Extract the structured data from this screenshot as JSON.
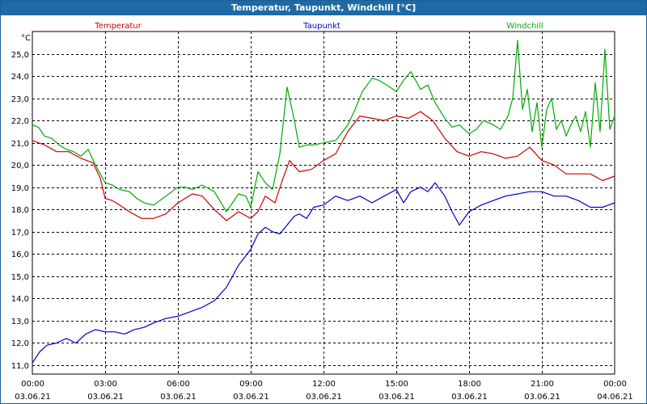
{
  "window": {
    "title": "Temperatur, Taupunkt, Windchill [°C]"
  },
  "colors": {
    "titlebar": "#1d6aa5",
    "temperatur": "#cc0000",
    "taupunkt": "#0000cc",
    "windchill": "#00aa00"
  },
  "chart_data": {
    "type": "line",
    "title": "Temperatur, Taupunkt, Windchill [°C]",
    "ylabel": "°C",
    "xlabel": "",
    "ylim": [
      10.6,
      26.0
    ],
    "xlim": [
      0,
      24
    ],
    "grid": true,
    "y_ticks": [
      "11,0",
      "12,0",
      "13,0",
      "14,0",
      "15,0",
      "16,0",
      "17,0",
      "18,0",
      "19,0",
      "20,0",
      "21,0",
      "22,0",
      "23,0",
      "24,0",
      "25,0"
    ],
    "x_ticks": [
      {
        "time": "00:00",
        "date": "03.06.21"
      },
      {
        "time": "03:00",
        "date": "03.06.21"
      },
      {
        "time": "06:00",
        "date": "03.06.21"
      },
      {
        "time": "09:00",
        "date": "03.06.21"
      },
      {
        "time": "12:00",
        "date": "03.06.21"
      },
      {
        "time": "15:00",
        "date": "03.06.21"
      },
      {
        "time": "18:00",
        "date": "03.06.21"
      },
      {
        "time": "21:00",
        "date": "03.06.21"
      },
      {
        "time": "00:00",
        "date": "04.06.21"
      }
    ],
    "series": [
      {
        "name": "Temperatur",
        "color": "#cc0000",
        "x": [
          0,
          0.25,
          0.5,
          1,
          1.5,
          2,
          2.5,
          2.8,
          3,
          3.3,
          3.6,
          4,
          4.5,
          5,
          5.5,
          6,
          6.3,
          6.6,
          7,
          7.5,
          8,
          8.5,
          9,
          9.3,
          9.6,
          10,
          10.3,
          10.6,
          11,
          11.5,
          12,
          12.5,
          13,
          13.5,
          14,
          14.5,
          15,
          15.5,
          16,
          16.5,
          17,
          17.5,
          18,
          18.5,
          19,
          19.5,
          20,
          20.5,
          21,
          21.5,
          22,
          22.5,
          23,
          23.5,
          24
        ],
        "values": [
          21.1,
          21.0,
          20.9,
          20.6,
          20.6,
          20.3,
          20.1,
          19.4,
          18.5,
          18.4,
          18.2,
          17.9,
          17.6,
          17.6,
          17.8,
          18.3,
          18.5,
          18.7,
          18.6,
          18.0,
          17.5,
          17.9,
          17.6,
          17.9,
          18.6,
          18.3,
          19.3,
          20.2,
          19.7,
          19.8,
          20.2,
          20.5,
          21.5,
          22.2,
          22.1,
          22.0,
          22.2,
          22.1,
          22.4,
          22.0,
          21.2,
          20.6,
          20.4,
          20.6,
          20.5,
          20.3,
          20.4,
          20.8,
          20.2,
          20.0,
          19.6,
          19.6,
          19.6,
          19.3,
          19.5
        ]
      },
      {
        "name": "Taupunkt",
        "color": "#0000cc",
        "x": [
          0,
          0.3,
          0.6,
          1,
          1.4,
          1.8,
          2.2,
          2.6,
          3,
          3.4,
          3.8,
          4.2,
          4.6,
          5,
          5.5,
          6,
          6.5,
          7,
          7.5,
          8,
          8.5,
          9,
          9.3,
          9.6,
          9.9,
          10.2,
          10.5,
          10.8,
          11,
          11.3,
          11.6,
          12,
          12.5,
          13,
          13.5,
          14,
          14.5,
          15,
          15.3,
          15.6,
          16,
          16.3,
          16.6,
          17,
          17.3,
          17.6,
          18,
          18.5,
          19,
          19.5,
          20,
          20.5,
          21,
          21.5,
          22,
          22.5,
          23,
          23.5,
          24
        ],
        "values": [
          11.1,
          11.6,
          11.9,
          12.0,
          12.2,
          12.0,
          12.4,
          12.6,
          12.5,
          12.5,
          12.4,
          12.6,
          12.7,
          12.9,
          13.1,
          13.2,
          13.4,
          13.6,
          13.9,
          14.5,
          15.5,
          16.2,
          16.9,
          17.2,
          17.0,
          16.9,
          17.3,
          17.7,
          17.8,
          17.6,
          18.1,
          18.2,
          18.6,
          18.4,
          18.6,
          18.3,
          18.6,
          18.9,
          18.3,
          18.8,
          19.0,
          18.8,
          19.2,
          18.6,
          17.9,
          17.3,
          17.9,
          18.2,
          18.4,
          18.6,
          18.7,
          18.8,
          18.8,
          18.6,
          18.6,
          18.4,
          18.1,
          18.1,
          18.3
        ]
      },
      {
        "name": "Windchill",
        "color": "#00aa00",
        "x": [
          0,
          0.25,
          0.5,
          0.8,
          1.1,
          1.4,
          1.7,
          2,
          2.3,
          2.6,
          2.8,
          3,
          3.3,
          3.6,
          4,
          4.3,
          4.6,
          5,
          5.5,
          6,
          6.3,
          6.6,
          7,
          7.5,
          8,
          8.5,
          8.8,
          9,
          9.3,
          9.6,
          9.9,
          10.2,
          10.5,
          10.8,
          11,
          11.3,
          11.6,
          12,
          12.5,
          13,
          13.3,
          13.6,
          14,
          14.3,
          14.6,
          15,
          15.3,
          15.6,
          16,
          16.3,
          16.6,
          17,
          17.3,
          17.6,
          18,
          18.3,
          18.6,
          19,
          19.3,
          19.6,
          19.8,
          20,
          20.2,
          20.4,
          20.6,
          20.8,
          21,
          21.2,
          21.4,
          21.6,
          21.8,
          22,
          22.2,
          22.4,
          22.6,
          22.8,
          23,
          23.2,
          23.4,
          23.6,
          23.8,
          24
        ],
        "values": [
          21.8,
          21.7,
          21.3,
          21.2,
          20.9,
          20.7,
          20.6,
          20.4,
          20.7,
          20.0,
          19.6,
          19.2,
          19.1,
          18.9,
          18.8,
          18.5,
          18.3,
          18.2,
          18.6,
          19.0,
          19.0,
          18.9,
          19.1,
          18.8,
          17.9,
          18.7,
          18.6,
          18.1,
          19.7,
          19.2,
          18.9,
          20.5,
          23.5,
          22.0,
          20.8,
          20.9,
          20.9,
          21.0,
          21.1,
          21.8,
          22.5,
          23.3,
          23.9,
          23.8,
          23.6,
          23.3,
          23.8,
          24.2,
          23.4,
          23.6,
          22.8,
          22.1,
          21.7,
          21.8,
          21.4,
          21.6,
          22.0,
          21.8,
          21.6,
          22.2,
          23.0,
          25.6,
          22.5,
          23.4,
          21.5,
          22.8,
          20.8,
          22.5,
          23.0,
          21.6,
          22.0,
          21.3,
          21.8,
          22.2,
          21.5,
          22.4,
          20.8,
          23.7,
          21.5,
          25.2,
          21.6,
          22.2
        ]
      }
    ]
  }
}
